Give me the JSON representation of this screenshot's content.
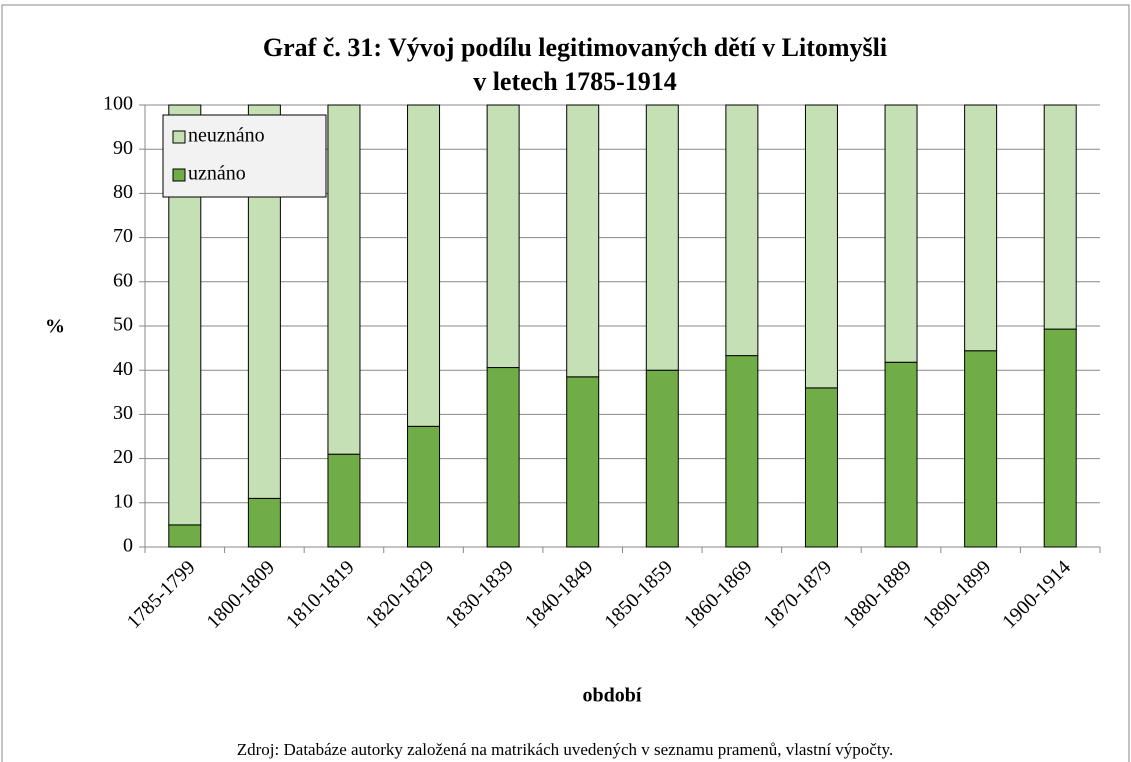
{
  "chart_data": {
    "type": "stacked_bar",
    "title": [
      "Graf č. 31: Vývoj podílu legitimovaných dětí v Litomyšli",
      "v letech 1785-1914"
    ],
    "x_label": "období",
    "y_label": "%",
    "source": "Zdroj: Databáze autorky založená na matrikách uvedených v seznamu pramenů, vlastní výpočty.",
    "categories": [
      "1785-1799",
      "1800-1809",
      "1810-1819",
      "1820-1829",
      "1830-1839",
      "1840-1849",
      "1850-1859",
      "1860-1869",
      "1870-1879",
      "1880-1889",
      "1890-1899",
      "1900-1914"
    ],
    "series": [
      {
        "name": "uznáno",
        "color": "#70ad47",
        "values": [
          5,
          11,
          21,
          27.3,
          40.6,
          38.5,
          40,
          43.3,
          36,
          41.8,
          44.4,
          49.3
        ]
      },
      {
        "name": "neuznáno",
        "color": "#c5e0b4",
        "values": [
          95,
          89,
          79,
          72.7,
          59.4,
          61.5,
          60,
          56.7,
          64,
          58.2,
          55.6,
          50.7
        ]
      }
    ],
    "ylim": [
      0,
      100
    ],
    "yticks": [
      0,
      10,
      20,
      30,
      40,
      50,
      60,
      70,
      80,
      90,
      100
    ],
    "grid": true,
    "legend": "upper left"
  }
}
